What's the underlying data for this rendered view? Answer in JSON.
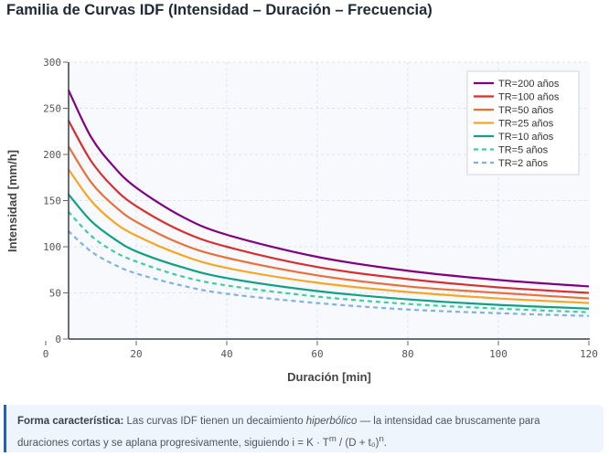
{
  "title": "Familia de Curvas IDF (Intensidad – Duración – Frecuencia)",
  "chart_data": {
    "type": "line",
    "xlabel": "Duración [min]",
    "ylabel": "Intensidad [mm/h]",
    "xlim": [
      0,
      120
    ],
    "ylim": [
      0,
      300
    ],
    "xticks": [
      "0",
      "20",
      "40",
      "60",
      "80",
      "100",
      "120"
    ],
    "yticks": [
      "0",
      "50",
      "100",
      "150",
      "200",
      "250",
      "300"
    ],
    "grid": true,
    "legend": "top-right",
    "x": [
      5,
      10,
      15,
      20,
      30,
      40,
      60,
      80,
      100,
      120
    ],
    "series": [
      {
        "name": "TR=200 años",
        "color": "#800080",
        "dash": false,
        "values": [
          270,
          219,
          187,
          164,
          133,
          113,
          89,
          74,
          64,
          57
        ]
      },
      {
        "name": "TR=100 años",
        "color": "#d62f2f",
        "dash": false,
        "values": [
          237,
          193,
          164,
          144,
          117,
          100,
          78,
          65,
          56,
          50
        ]
      },
      {
        "name": "TR=50 años",
        "color": "#e8703a",
        "dash": false,
        "values": [
          209,
          170,
          145,
          127,
          103,
          88,
          69,
          57,
          50,
          44
        ]
      },
      {
        "name": "TR=25 años",
        "color": "#f5a623",
        "dash": false,
        "values": [
          184,
          150,
          127,
          112,
          91,
          77,
          61,
          51,
          44,
          39
        ]
      },
      {
        "name": "TR=10 años",
        "color": "#12a085",
        "dash": false,
        "values": [
          157,
          128,
          109,
          95,
          78,
          66,
          52,
          43,
          37,
          33
        ]
      },
      {
        "name": "TR=5 años",
        "color": "#3ecf9a",
        "dash": true,
        "values": [
          138,
          112,
          95,
          84,
          68,
          58,
          46,
          38,
          33,
          29
        ]
      },
      {
        "name": "TR=2 años",
        "color": "#7fb2e0",
        "dash": true,
        "values": [
          117,
          95,
          81,
          71,
          58,
          49,
          39,
          32,
          28,
          25
        ]
      }
    ]
  },
  "note": {
    "bold": "Forma característica:",
    "text1": " Las curvas IDF tienen un decaimiento ",
    "italic": "hiperbólico",
    "text2": " — la intensidad cae bruscamente para duraciones cortas y se aplana progresivamente, siguiendo i = K · T",
    "sup1": "m",
    "text3": " / (D + t₀)",
    "sup2": "n",
    "text4": "."
  }
}
